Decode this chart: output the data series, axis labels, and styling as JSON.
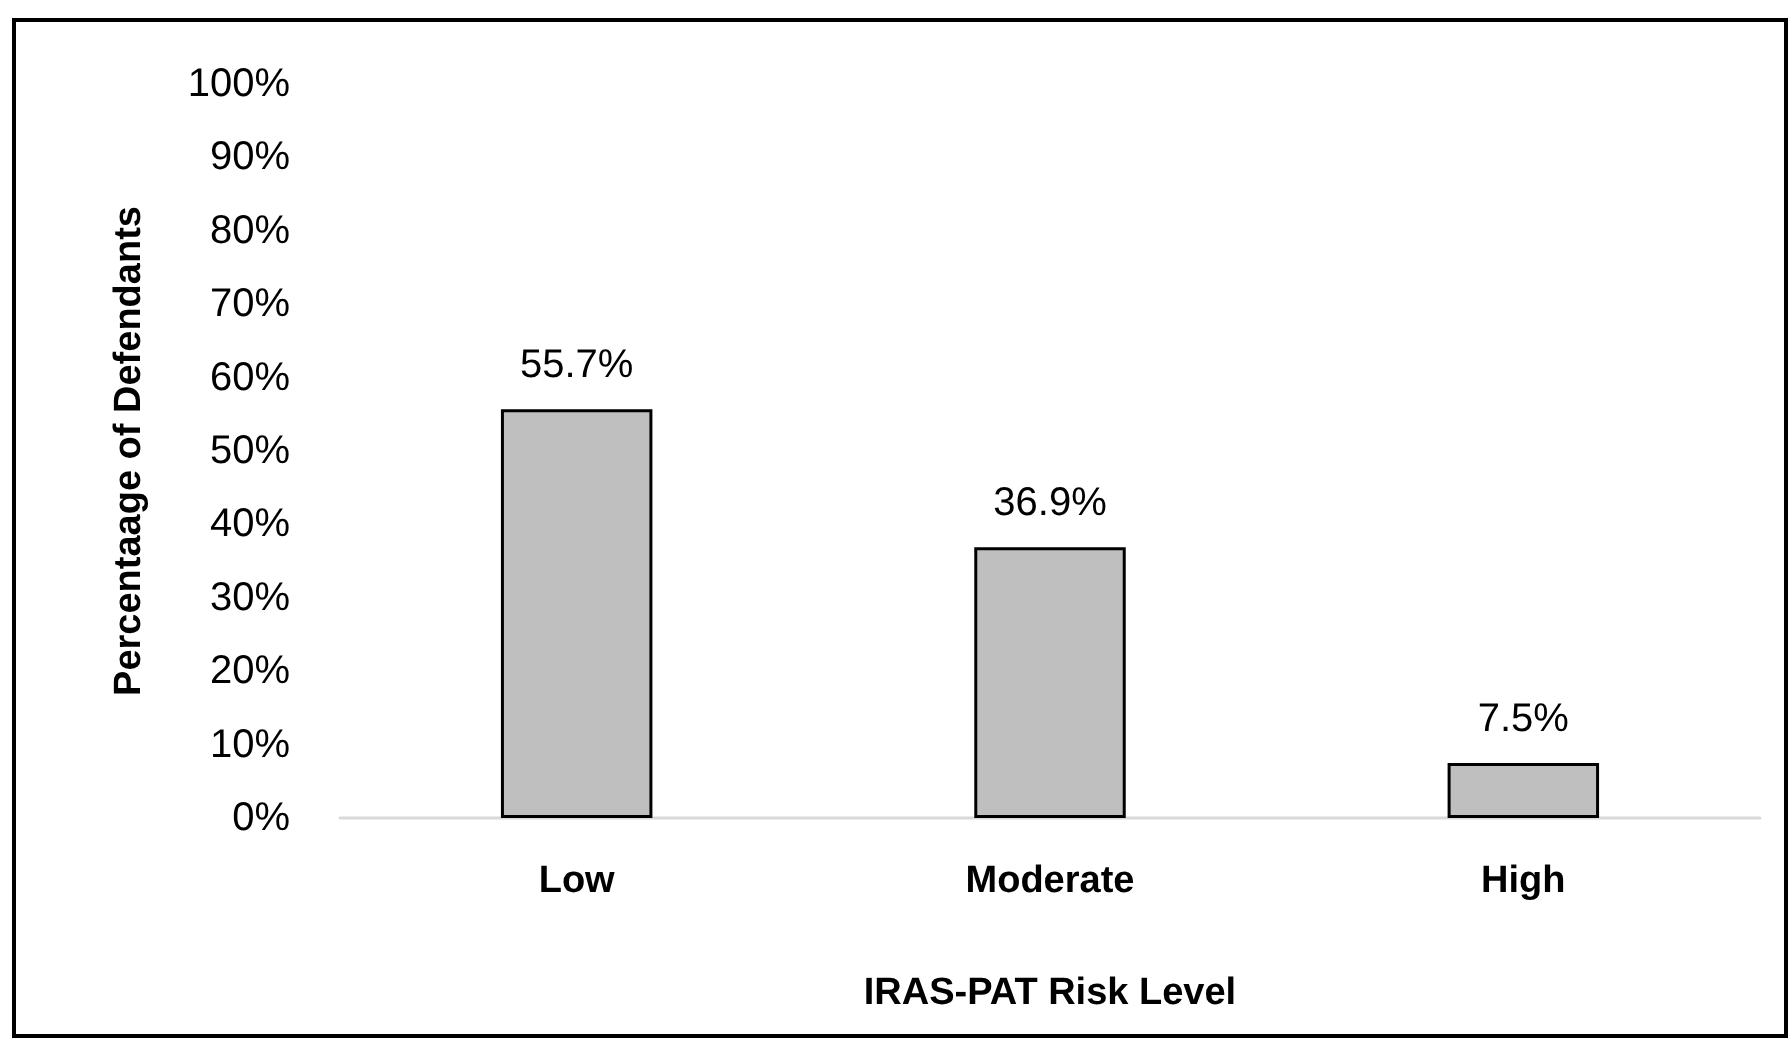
{
  "chart_data": {
    "type": "bar",
    "xlabel": "IRAS-PAT Risk Level",
    "ylabel": "Percentaage of Defendants",
    "categories": [
      "Low",
      "Moderate",
      "High"
    ],
    "values": [
      55.7,
      36.9,
      7.5
    ],
    "color": "#bfbfbf",
    "value_labels": [
      "55.7%",
      "36.9%",
      "7.5%"
    ],
    "ylim": [
      0,
      100
    ],
    "yticks": [
      {
        "value": 0,
        "label": "0%"
      },
      {
        "value": 10,
        "label": "10%"
      },
      {
        "value": 20,
        "label": "20%"
      },
      {
        "value": 30,
        "label": "30%"
      },
      {
        "value": 40,
        "label": "40%"
      },
      {
        "value": 50,
        "label": "50%"
      },
      {
        "value": 60,
        "label": "60%"
      },
      {
        "value": 70,
        "label": "70%"
      },
      {
        "value": 80,
        "label": "80%"
      },
      {
        "value": 90,
        "label": "90%"
      },
      {
        "value": 100,
        "label": "100%"
      }
    ]
  }
}
